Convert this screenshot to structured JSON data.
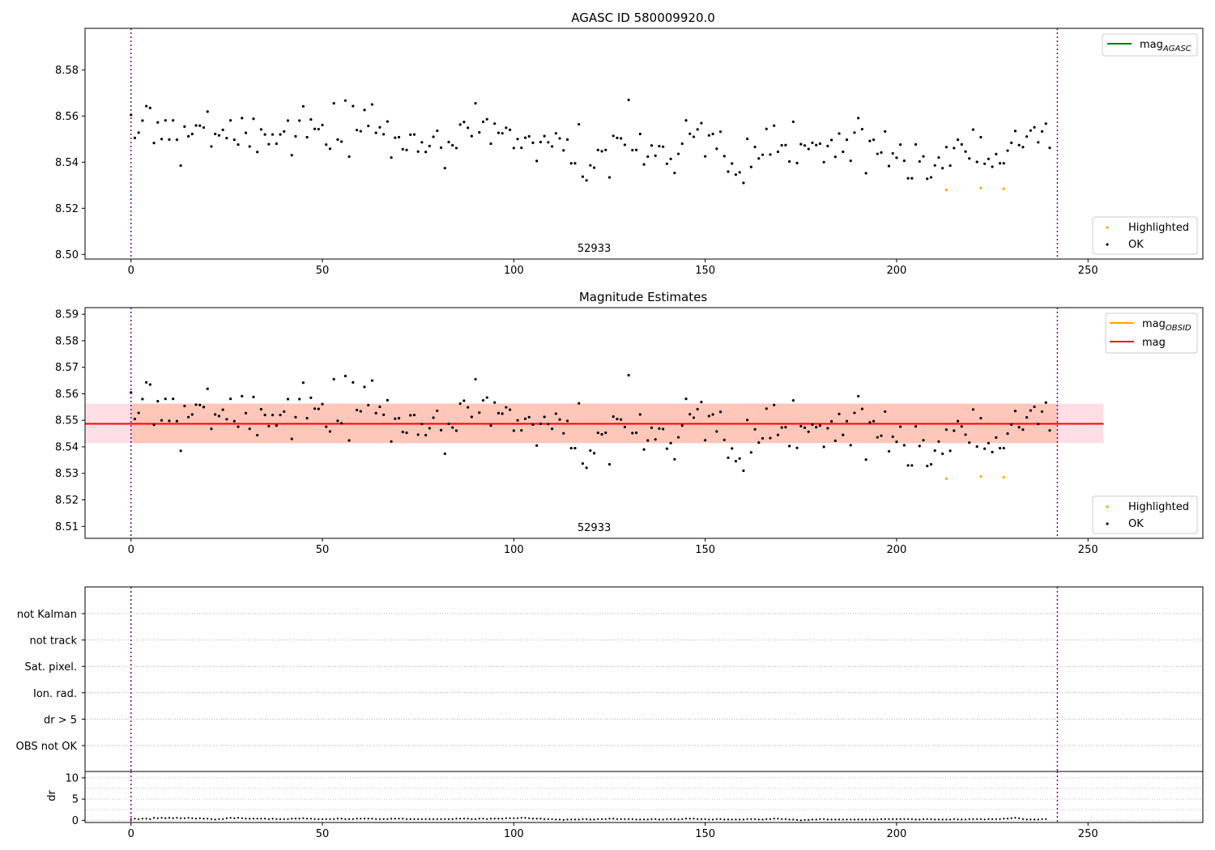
{
  "chart_data": [
    {
      "type": "scatter",
      "title": "AGASC ID 580009920.0",
      "xlim": [
        -12,
        280
      ],
      "ylim": [
        8.498,
        8.598
      ],
      "xticks": [
        0,
        50,
        100,
        150,
        200,
        250
      ],
      "yticks": [
        8.5,
        8.52,
        8.54,
        8.56,
        8.58
      ],
      "ytick_decimals": 2,
      "vlines": [
        0,
        242
      ],
      "obsid_label": {
        "text": "52933",
        "x": 121
      },
      "legend_lines": [
        {
          "label": "mag",
          "sub": "AGASC",
          "color": "#008000"
        }
      ],
      "legend_markers": [
        {
          "label": "Highlighted",
          "color": "#ffa500"
        },
        {
          "label": "OK",
          "color": "#000000"
        }
      ],
      "highlighted": {
        "x": [
          213,
          222,
          228
        ],
        "y": [
          8.528,
          8.5288,
          8.5285
        ]
      }
    },
    {
      "type": "scatter",
      "title": "Magnitude Estimates",
      "xlim": [
        -12,
        280
      ],
      "ylim": [
        8.5055,
        8.5925
      ],
      "xticks": [
        0,
        50,
        100,
        150,
        200,
        250
      ],
      "yticks": [
        8.51,
        8.52,
        8.53,
        8.54,
        8.55,
        8.56,
        8.57,
        8.58,
        8.59
      ],
      "ytick_decimals": 2,
      "vlines": [
        0,
        242
      ],
      "obsid_label": {
        "text": "52933",
        "x": 121
      },
      "legend_lines": [
        {
          "label": "mag",
          "sub": "OBSID",
          "color": "#ffa500"
        },
        {
          "label": "mag",
          "sub": "",
          "color": "#ff0000"
        }
      ],
      "legend_markers": [
        {
          "label": "Highlighted",
          "color": "#ffa500"
        },
        {
          "label": "OK",
          "color": "#000000"
        }
      ],
      "mag_line": {
        "value": 8.5487,
        "x_range": [
          -12,
          254
        ],
        "color": "#ff0000",
        "band": [
          8.5414,
          8.5563
        ],
        "band_color": "#ffc0cb"
      },
      "obsid_line": {
        "value": 8.5487,
        "x_range": [
          0,
          242
        ],
        "color": "#ffa500",
        "band": [
          8.5414,
          8.5563
        ],
        "band_color": "#ffa07a"
      },
      "highlighted": {
        "x": [
          213,
          222,
          228
        ],
        "y": [
          8.528,
          8.5288,
          8.5285
        ]
      }
    },
    {
      "type": "scatter",
      "xlim": [
        -12,
        280
      ],
      "flag_labels": [
        "not Kalman",
        "not track",
        "Sat. pixel.",
        "Ion. rad.",
        "dr > 5",
        "OBS not OK"
      ],
      "vlines": [
        0,
        242
      ]
    },
    {
      "type": "scatter",
      "ylabel": "dr",
      "xlim": [
        -12,
        280
      ],
      "ylim": [
        -0.5,
        11.5
      ],
      "xticks": [
        0,
        50,
        100,
        150,
        200,
        250
      ],
      "yticks": [
        0,
        5,
        10
      ],
      "ytick_decimals": 0,
      "vlines": [
        0,
        242
      ],
      "dr_values": [
        0.3,
        0.4,
        0.3,
        0.4,
        0.4,
        0.3,
        0.6,
        0.5,
        0.6,
        0.5,
        0.6,
        0.5,
        0.6,
        0.5,
        0.5,
        0.6,
        0.5,
        0.4,
        0.5,
        0.4,
        0.4,
        0.3,
        0.2,
        0.3,
        0.3,
        0.5,
        0.6,
        0.5,
        0.6,
        0.5,
        0.4,
        0.4,
        0.4,
        0.4,
        0.4,
        0.4,
        0.3,
        0.4,
        0.3,
        0.3,
        0.3,
        0.3,
        0.4,
        0.4,
        0.4,
        0.5,
        0.4,
        0.4,
        0.3,
        0.3,
        0.3,
        0.3,
        0.3,
        0.3,
        0.4,
        0.4,
        0.3,
        0.3,
        0.3,
        0.4,
        0.4,
        0.4,
        0.4,
        0.4,
        0.3,
        0.3,
        0.3,
        0.3,
        0.4,
        0.4,
        0.4,
        0.4,
        0.3,
        0.3,
        0.3,
        0.3,
        0.3,
        0.3,
        0.3,
        0.3,
        0.3,
        0.3,
        0.3,
        0.3,
        0.3,
        0.4,
        0.4,
        0.4,
        0.4,
        0.3,
        0.3,
        0.4,
        0.4,
        0.3,
        0.4,
        0.4,
        0.4,
        0.4,
        0.5,
        0.5,
        0.5,
        0.5,
        0.6,
        0.6,
        0.5,
        0.4,
        0.4,
        0.4,
        0.3,
        0.3,
        0.3,
        0.2,
        0.2,
        0.1,
        0.2,
        0.2,
        0.2,
        0.2,
        0.3,
        0.3,
        0.2,
        0.2,
        0.3,
        0.3,
        0.3,
        0.4,
        0.4,
        0.3,
        0.3,
        0.3,
        0.3,
        0.3,
        0.2,
        0.2,
        0.2,
        0.2,
        0.3,
        0.3,
        0.2,
        0.2,
        0.3,
        0.3,
        0.3,
        0.2,
        0.3,
        0.4,
        0.4,
        0.4,
        0.3,
        0.3,
        0.3,
        0.2,
        0.2,
        0.3,
        0.3,
        0.2,
        0.2,
        0.2,
        0.2,
        0.2,
        0.2,
        0.3,
        0.3,
        0.3,
        0.2,
        0.2,
        0.3,
        0.3,
        0.4,
        0.4,
        0.3,
        0.3,
        0.2,
        0.2,
        0.1,
        0.0,
        0.1,
        0.1,
        0.2,
        0.2,
        0.3,
        0.3,
        0.2,
        0.2,
        0.2,
        0.2,
        0.2,
        0.2,
        0.2,
        0.2,
        0.2,
        0.2,
        0.2,
        0.2,
        0.2,
        0.2,
        0.3,
        0.3,
        0.3,
        0.3,
        0.3,
        0.3,
        0.3,
        0.3,
        0.3,
        0.2,
        0.2,
        0.3,
        0.3,
        0.3,
        0.2,
        0.2,
        0.2,
        0.2,
        0.2,
        0.3,
        0.2,
        0.2,
        0.2,
        0.3,
        0.3,
        0.3,
        0.3,
        0.2,
        0.3,
        0.3,
        0.3,
        0.3,
        0.4,
        0.4,
        0.5,
        0.6,
        0.5,
        0.3,
        0.2,
        0.2,
        0.2,
        0.2,
        0.3,
        0.3
      ]
    }
  ],
  "ok_points": {
    "y": [
      8.5605,
      8.5505,
      8.5528,
      8.558,
      8.5643,
      8.5635,
      8.5483,
      8.5572,
      8.55,
      8.5581,
      8.5498,
      8.5581,
      8.5497,
      8.5385,
      8.5554,
      8.5512,
      8.5522,
      8.5559,
      8.5558,
      8.555,
      8.5619,
      8.5468,
      8.5522,
      8.5516,
      8.554,
      8.5504,
      8.5581,
      8.5497,
      8.5476,
      8.5591,
      8.5527,
      8.5468,
      8.5588,
      8.5444,
      8.5542,
      8.552,
      8.5478,
      8.552,
      8.548,
      8.552,
      8.5533,
      8.558,
      8.543,
      8.5512,
      8.558,
      8.5642,
      8.5508,
      8.5585,
      8.5544,
      8.5543,
      8.5561,
      8.5476,
      8.5458,
      8.5655,
      8.5498,
      8.5489,
      8.5667,
      8.5424,
      8.5643,
      8.5539,
      8.5534,
      8.5626,
      8.5557,
      8.565,
      8.5527,
      8.5551,
      8.5521,
      8.5576,
      8.542,
      8.5506,
      8.5508,
      8.5456,
      8.5453,
      8.5519,
      8.552,
      8.5446,
      8.5486,
      8.5444,
      8.547,
      8.551,
      8.5536,
      8.5463,
      8.5374,
      8.5487,
      8.5473,
      8.5461,
      8.5563,
      8.5574,
      8.5549,
      8.5513,
      8.5655,
      8.5529,
      8.5575,
      8.5586,
      8.548,
      8.5567,
      8.5527,
      8.5525,
      8.5549,
      8.554,
      8.5461,
      8.55,
      8.5462,
      8.5506,
      8.5512,
      8.5484,
      8.5405,
      8.5487,
      8.5513,
      8.5486,
      8.5468,
      8.5525,
      8.5503,
      8.5451,
      8.5498,
      8.5395,
      8.5395,
      8.5564,
      8.5337,
      8.5321,
      8.5386,
      8.5376,
      8.5453,
      8.5447,
      8.5453,
      8.5334,
      8.5514,
      8.5505,
      8.5503,
      8.5475,
      8.567,
      8.5452,
      8.5453,
      8.5522,
      8.539,
      8.5424,
      8.5472,
      8.5428,
      8.5469,
      8.5467,
      8.5393,
      8.5414,
      8.5353,
      8.5436,
      8.548,
      8.5581,
      8.5523,
      8.551,
      8.5542,
      8.5569,
      8.5425,
      8.5516,
      8.5522,
      8.5458,
      8.5532,
      8.5426,
      8.5359,
      8.5394,
      8.5346,
      8.5356,
      8.531,
      8.5501,
      8.5379,
      8.5466,
      8.5416,
      8.5432,
      8.5544,
      8.5433,
      8.5558,
      8.5445,
      8.5473,
      8.5474,
      8.5403,
      8.5575,
      8.5396,
      8.5478,
      8.5472,
      8.5457,
      8.5484,
      8.5474,
      8.548,
      8.54,
      8.547,
      8.5496,
      8.5423,
      8.5524,
      8.5445,
      8.5497,
      8.5406,
      8.5528,
      8.5591,
      8.5543,
      8.5352,
      8.5492,
      8.5497,
      8.5436,
      8.5442,
      8.5533,
      8.5383,
      8.5438,
      8.5419,
      8.5476,
      8.5406,
      8.533,
      8.533,
      8.5477,
      8.5403,
      8.5425,
      8.5328,
      8.5334,
      8.5386,
      8.542,
      8.5374,
      8.5465,
      8.5385,
      8.5461,
      8.5497,
      8.5477,
      8.5446,
      8.5416,
      8.5541,
      8.5401,
      8.5508,
      8.5393,
      8.5414,
      8.538,
      8.5435,
      8.5395,
      8.5395,
      8.545,
      8.5484,
      8.5535,
      8.5474,
      8.5465,
      8.5511,
      8.5537,
      8.5551,
      8.5486,
      8.5533,
      8.5567,
      8.5462
    ]
  }
}
